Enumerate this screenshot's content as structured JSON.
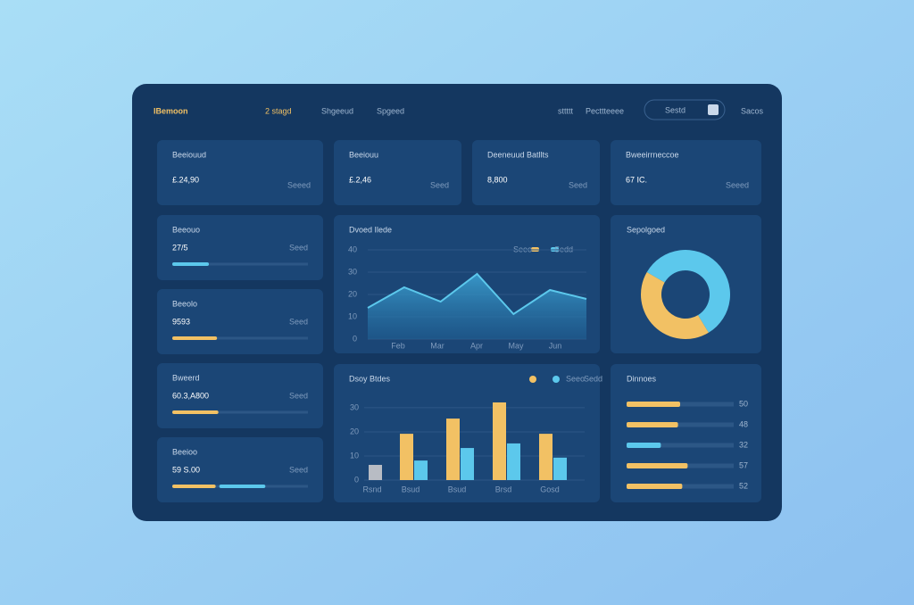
{
  "nav": {
    "logo": "IBemoon",
    "items": [
      "2 stagd",
      "Shgeeud",
      "Spgeed"
    ],
    "right": [
      "sttttt",
      "Pecttteeee"
    ],
    "search": "Sestd",
    "action": "Sacos"
  },
  "kpis": [
    {
      "label": "Beeiouud",
      "value": "£.24,90",
      "note": "Seeed"
    },
    {
      "label": "Beeiouu",
      "value": "£.2,46",
      "note": "Seed"
    },
    {
      "label": "Deeneuud Batllts",
      "value": "8,800",
      "note": "Seed"
    },
    {
      "label": "Bweeirrneccoe",
      "value": "67 IC.",
      "note": "Seeed"
    }
  ],
  "side_cards": [
    {
      "label": "Beeouo",
      "value": "27/5",
      "note": "Seed",
      "progress": [
        27
      ],
      "colors": [
        "#5cc8ec"
      ]
    },
    {
      "label": "Beeolo",
      "value": "9593",
      "note": "Seed",
      "progress": [
        33
      ],
      "colors": [
        "#f2c164"
      ]
    },
    {
      "label": "Bweerd",
      "value": "60.3,A800",
      "note": "Seed",
      "progress": [
        34
      ],
      "colors": [
        "#f2c164"
      ]
    },
    {
      "label": "Beeioo",
      "value": "59 S.00",
      "note": "Seed",
      "progress": [
        32,
        34
      ],
      "colors": [
        "#f2c164",
        "#5cc8ec"
      ]
    }
  ],
  "line_chart": {
    "title": "Dvoed Ilede",
    "legend": [
      {
        "name": "Seeo",
        "color": "#f2c164"
      },
      {
        "name": "Sedd",
        "color": "#5cc8ec"
      }
    ],
    "ylim": [
      0,
      40
    ],
    "yticks": [
      0,
      10,
      20,
      30,
      40
    ],
    "values": [
      14,
      23.2,
      16.8,
      29.2,
      11.2,
      22,
      18
    ],
    "xlabels": [
      "Feb",
      "Mar",
      "Apr",
      "May",
      "Jun"
    ],
    "color": "#5cc8ec"
  },
  "bar_chart": {
    "title": "Dsoy Btdes",
    "ylim": [
      0,
      37
    ],
    "yticks": [
      0,
      10,
      20,
      30
    ],
    "categories": [
      "Rsnd",
      "Bsud",
      "Bsud",
      "Brsd",
      "Gosd"
    ],
    "base_values": [
      6.3,
      null,
      null,
      null,
      null
    ],
    "base_color": "#b8bcc4",
    "series": [
      {
        "name": "Seeo",
        "color": "#f2c164",
        "values": [
          null,
          19.2,
          25.5,
          32.2,
          19.2
        ]
      },
      {
        "name": "Sedd",
        "color": "#5cc8ec",
        "values": [
          null,
          8.1,
          13.3,
          15.2,
          9.3
        ]
      }
    ]
  },
  "donut": {
    "title": "Sepolgoed",
    "values": [
      58,
      42
    ],
    "colors": [
      "#5cc8ec",
      "#f2c164"
    ]
  },
  "hbars": {
    "title": "Dinnoes",
    "xlim": [
      0,
      100
    ],
    "values": [
      50,
      48,
      32,
      57,
      52
    ],
    "colors": [
      "#f2c164",
      "#f2c164",
      "#5cc8ec",
      "#f2c164",
      "#f2c164"
    ]
  }
}
